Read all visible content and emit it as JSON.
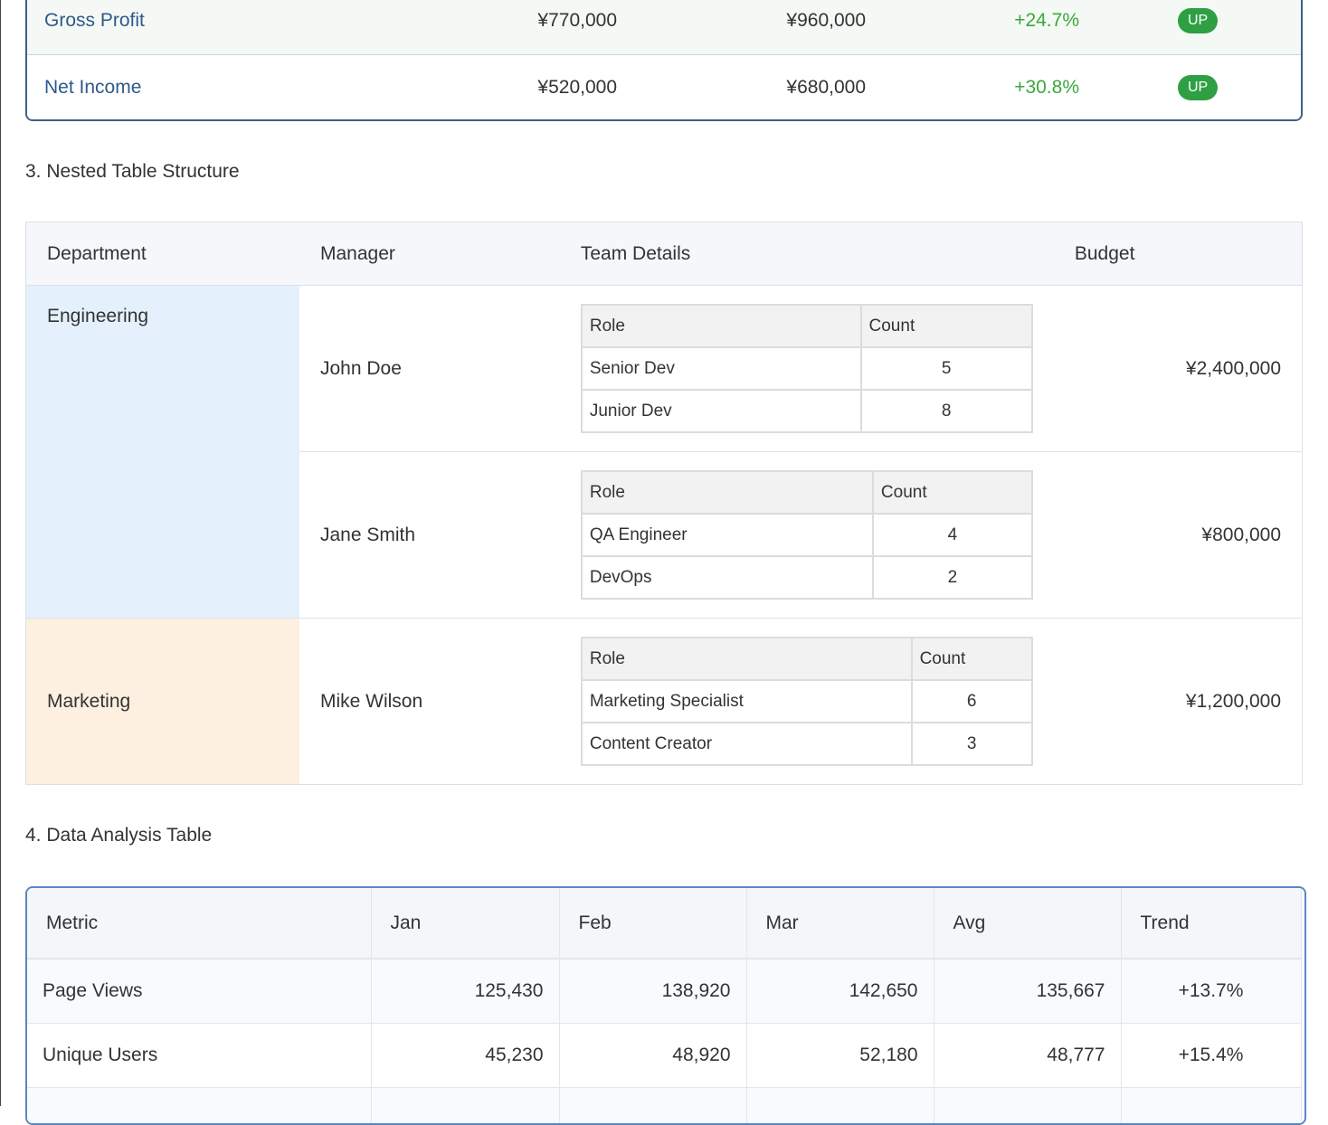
{
  "financial_table": {
    "rows": [
      {
        "item": "Gross  Profit",
        "q1": "¥770,000",
        "q2": "¥960,000",
        "change": "+24.7%",
        "status": "UP"
      },
      {
        "item": "Net Income",
        "q1": "¥520,000",
        "q2": "¥680,000",
        "change": "+30.8%",
        "status": "UP"
      }
    ]
  },
  "nested_section": {
    "title": "3. Nested  Table Structure",
    "headers": [
      "Department",
      "Manager",
      "Team Details",
      "Budget"
    ],
    "departments": [
      {
        "name": "Engineering",
        "teams": [
          {
            "manager": "John Doe",
            "role_header": "Role",
            "count_header": "Count",
            "roles": [
              {
                "role": "Senior Dev",
                "count": 5
              },
              {
                "role": "Junior Dev",
                "count": 8
              }
            ],
            "budget": "¥2,400,000"
          },
          {
            "manager": "Jane Smith",
            "role_header": "Role",
            "count_header": "Count",
            "roles": [
              {
                "role": "QA Engineer",
                "count": 4
              },
              {
                "role": "DevOps",
                "count": 2
              }
            ],
            "budget": "¥800,000"
          }
        ]
      },
      {
        "name": "Marketing",
        "teams": [
          {
            "manager": "Mike Wilson",
            "role_header": "Role",
            "count_header": "Count",
            "roles": [
              {
                "role": "Marketing Specialist",
                "count": 6
              },
              {
                "role": "Content Creator",
                "count": 3
              }
            ],
            "budget": "¥1,200,000"
          }
        ]
      }
    ]
  },
  "analysis_section": {
    "title": "4. Data Analysis  Table",
    "headers": [
      "Metric",
      "Jan",
      "Feb",
      "Mar",
      "Avg",
      "Trend"
    ],
    "rows": [
      {
        "metric": "Page Views",
        "values": [
          "125,430",
          "138,920",
          "142,650",
          "135,667"
        ],
        "trend": "+13.7%"
      },
      {
        "metric": "Unique  Users",
        "values": [
          "45,230",
          "48,920",
          "52,180",
          "48,777"
        ],
        "trend": "+15.4%"
      }
    ]
  }
}
